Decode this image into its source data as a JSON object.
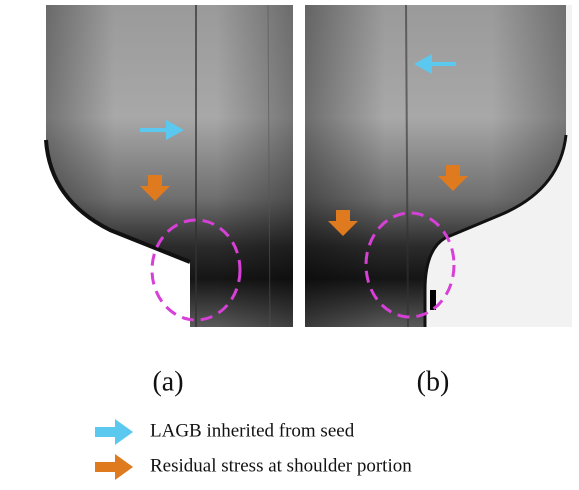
{
  "panels": [
    {
      "label": "(a)"
    },
    {
      "label": "(b)"
    }
  ],
  "legend": [
    {
      "text": "LAGB inherited from seed",
      "color": "#5bc8ef"
    },
    {
      "text": "Residual stress at shoulder portion",
      "color": "#e07a1e"
    }
  ]
}
